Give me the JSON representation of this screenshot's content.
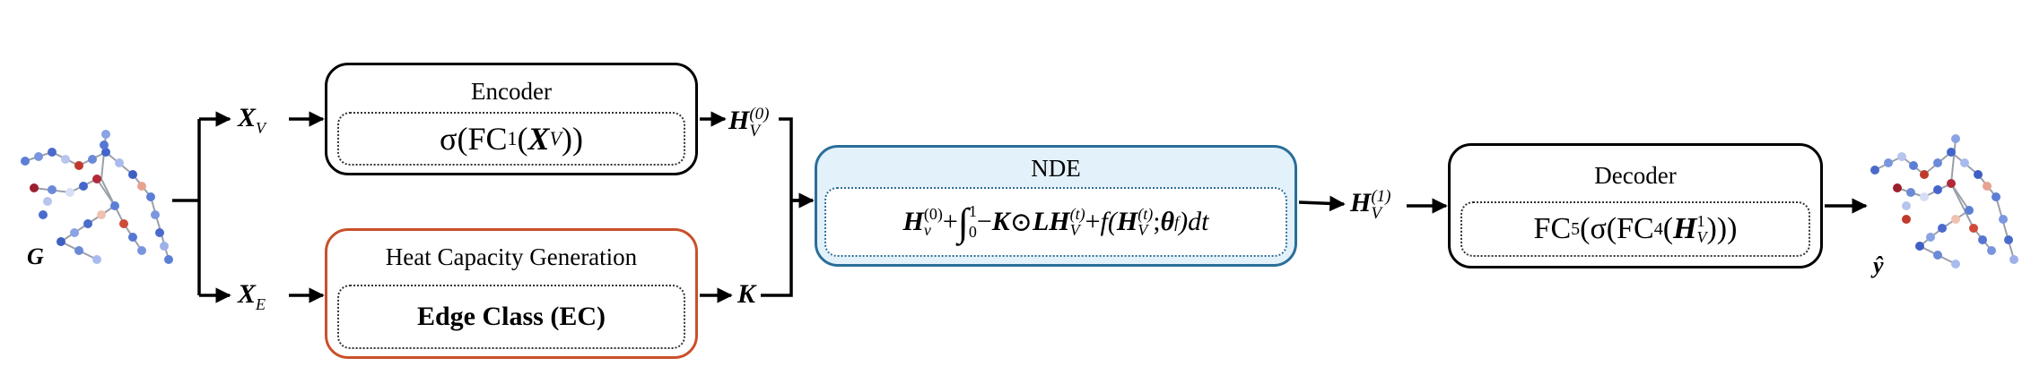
{
  "input_graph": {
    "label": "G"
  },
  "output_graph": {
    "label": "ŷ"
  },
  "inputs": {
    "x_v": {
      "base": "X",
      "sub": "V"
    },
    "x_e": {
      "base": "X",
      "sub": "E"
    }
  },
  "encoder": {
    "title": "Encoder",
    "formula": {
      "pre": "σ(FC",
      "sub": "1",
      "open": "(",
      "var": "X",
      "var_sub": "V",
      "close": "))"
    }
  },
  "heat_capacity": {
    "title": "Heat Capacity Generation",
    "body": "Edge Class (EC)"
  },
  "h0": {
    "base": "H",
    "sup": "(0)",
    "sub": "V"
  },
  "k": {
    "label": "K"
  },
  "nde": {
    "title": "NDE",
    "formula": {
      "h": "H",
      "h_sup": "(0)",
      "h_sub": "v",
      "plus": " + ",
      "int_upper": "1",
      "int_lower": "0",
      "minus": "−",
      "k": "K",
      "odot": " ⊙ ",
      "l": "L",
      "h2": "H",
      "h2_sup": "(t)",
      "h2_sub": "V",
      "plus2": " + ",
      "f": "f(",
      "h3": "H",
      "h3_sup": "(t)",
      "h3_sub": "V",
      "sep": "; ",
      "theta": "θ",
      "theta_sub": "f",
      "end": ")dt"
    }
  },
  "h1": {
    "base": "H",
    "sup": "(1)",
    "sub": "V"
  },
  "decoder": {
    "title": "Decoder",
    "formula": {
      "fc5": "FC",
      "fc5_sub": "5",
      "mid": "(σ(FC",
      "fc4_sub": "4",
      "open": "(",
      "var": "H",
      "var_sup": "1",
      "var_sub": "V",
      "close": ")))"
    }
  }
}
